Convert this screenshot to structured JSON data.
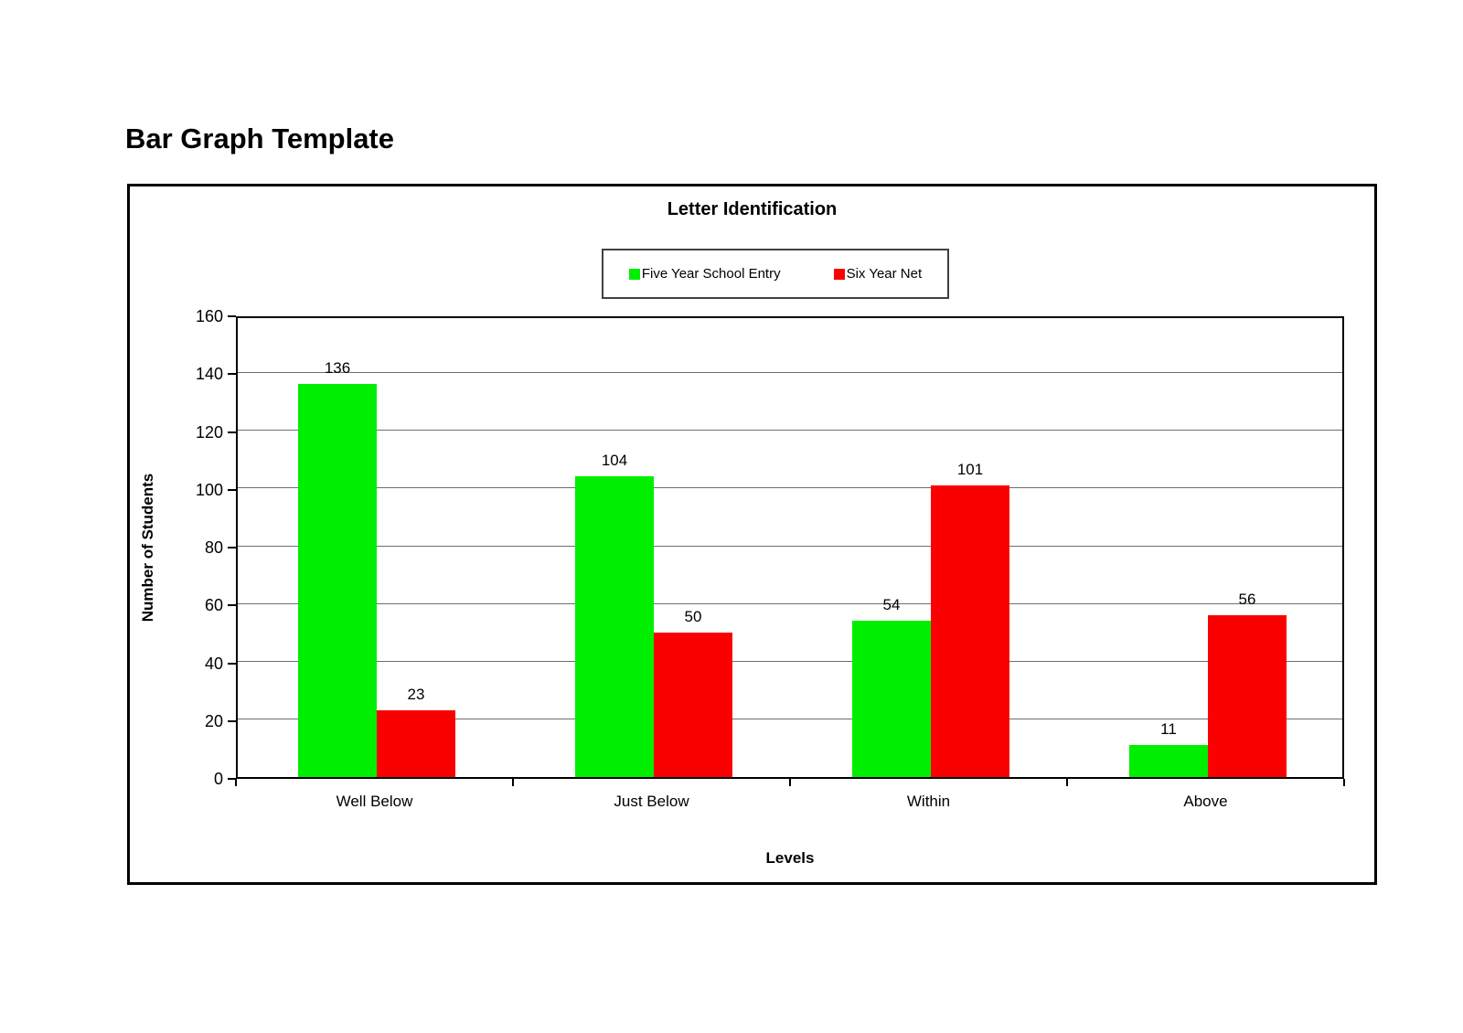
{
  "page_title": "Bar Graph Template",
  "chart_data": {
    "type": "bar",
    "title": "Letter Identification",
    "categories": [
      "Well Below",
      "Just Below",
      "Within",
      "Above"
    ],
    "series": [
      {
        "name": "Five Year School Entry",
        "color": "#00ee00",
        "values": [
          136,
          104,
          54,
          11
        ]
      },
      {
        "name": "Six Year Net",
        "color": "#fb0000",
        "values": [
          23,
          50,
          101,
          56
        ]
      }
    ],
    "xlabel": "Levels",
    "ylabel": "Number of Students",
    "ylim": [
      0,
      160
    ],
    "yticks": [
      0,
      20,
      40,
      60,
      80,
      100,
      120,
      140,
      160
    ],
    "grid": true,
    "legend_position": "top-center",
    "show_value_labels": true,
    "gridline_color": "#6e6e6e",
    "plot_border_color": "#000000"
  }
}
